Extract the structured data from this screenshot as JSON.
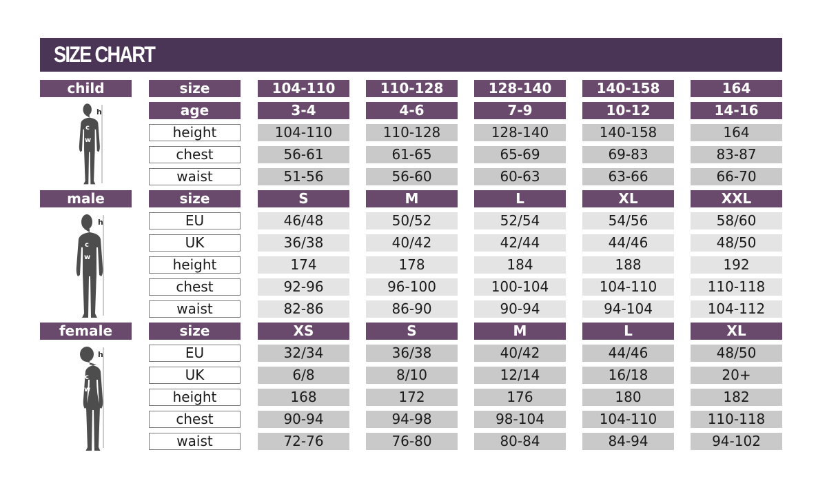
{
  "title": "SIZE CHART",
  "colors": {
    "title_bar": "#4a3556",
    "header_cell": "#6a4a6c",
    "value_cell": "#c9c9c9",
    "value_cell_light": "#e4e4e4"
  },
  "figure_labels": {
    "height": "h",
    "chest": "c",
    "waist": "w"
  },
  "sections": [
    {
      "label": "child",
      "figure": "child-silhouette-icon",
      "rows": [
        {
          "attr": "size",
          "header": true,
          "values": [
            "104-110",
            "110-128",
            "128-140",
            "140-158",
            "164"
          ]
        },
        {
          "attr": "age",
          "header": true,
          "values": [
            "3-4",
            "4-6",
            "7-9",
            "10-12",
            "14-16"
          ]
        },
        {
          "attr": "height",
          "values": [
            "104-110",
            "110-128",
            "128-140",
            "140-158",
            "164"
          ]
        },
        {
          "attr": "chest",
          "values": [
            "56-61",
            "61-65",
            "65-69",
            "69-83",
            "83-87"
          ]
        },
        {
          "attr": "waist",
          "values": [
            "51-56",
            "56-60",
            "60-63",
            "63-66",
            "66-70"
          ]
        }
      ]
    },
    {
      "label": "male",
      "figure": "male-silhouette-icon",
      "rows": [
        {
          "attr": "size",
          "header": true,
          "values": [
            "S",
            "M",
            "L",
            "XL",
            "XXL"
          ]
        },
        {
          "attr": "EU",
          "values": [
            "46/48",
            "50/52",
            "52/54",
            "54/56",
            "58/60"
          ]
        },
        {
          "attr": "UK",
          "values": [
            "36/38",
            "40/42",
            "42/44",
            "44/46",
            "48/50"
          ]
        },
        {
          "attr": "height",
          "values": [
            "174",
            "178",
            "184",
            "188",
            "192"
          ]
        },
        {
          "attr": "chest",
          "values": [
            "92-96",
            "96-100",
            "100-104",
            "104-110",
            "110-118"
          ]
        },
        {
          "attr": "waist",
          "values": [
            "82-86",
            "86-90",
            "90-94",
            "94-104",
            "104-112"
          ]
        }
      ]
    },
    {
      "label": "female",
      "figure": "female-silhouette-icon",
      "rows": [
        {
          "attr": "size",
          "header": true,
          "values": [
            "XS",
            "S",
            "M",
            "L",
            "XL"
          ]
        },
        {
          "attr": "EU",
          "values": [
            "32/34",
            "36/38",
            "40/42",
            "44/46",
            "48/50"
          ]
        },
        {
          "attr": "UK",
          "values": [
            "6/8",
            "8/10",
            "12/14",
            "16/18",
            "20+"
          ]
        },
        {
          "attr": "height",
          "values": [
            "168",
            "172",
            "176",
            "180",
            "182"
          ]
        },
        {
          "attr": "chest",
          "values": [
            "90-94",
            "94-98",
            "98-104",
            "104-110",
            "110-118"
          ]
        },
        {
          "attr": "waist",
          "values": [
            "72-76",
            "76-80",
            "80-84",
            "84-94",
            "94-102"
          ]
        }
      ]
    }
  ]
}
